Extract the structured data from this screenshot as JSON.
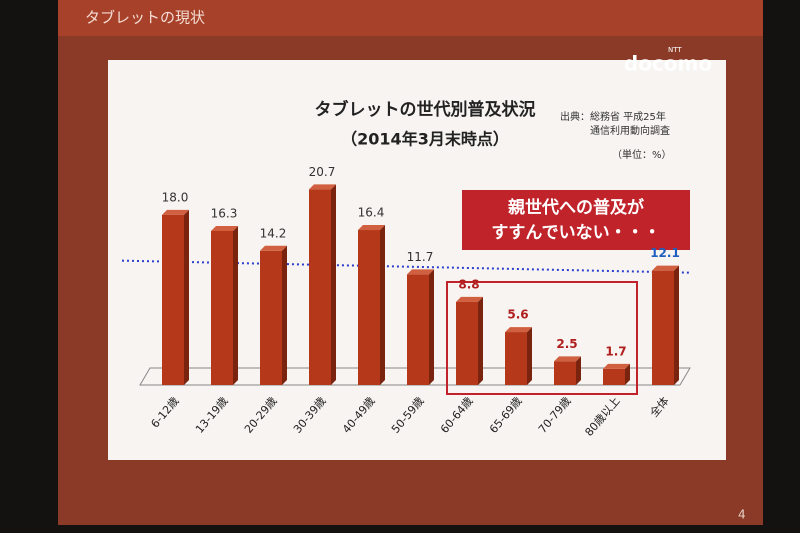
{
  "header": {
    "title": "タブレットの現状",
    "brand_small": "NTT",
    "brand": "docomo",
    "page": "4"
  },
  "chart_data": {
    "type": "bar",
    "title": "タブレットの世代別普及状況",
    "subtitle": "（2014年3月末時点）",
    "source": [
      "出典：総務省 平成25年",
      "通信利用動向調査"
    ],
    "unit": "（単位：%）",
    "categories": [
      "6-12歳",
      "13-19歳",
      "20-29歳",
      "30-39歳",
      "40-49歳",
      "50-59歳",
      "60-64歳",
      "65-69歳",
      "70-79歳",
      "80歳以上",
      "全体"
    ],
    "values": [
      18.0,
      16.3,
      14.2,
      20.7,
      16.4,
      11.7,
      8.8,
      5.6,
      2.5,
      1.7,
      12.1
    ],
    "value_labels": [
      "18.0",
      "16.3",
      "14.2",
      "20.7",
      "16.4",
      "11.7",
      "8.8",
      "5.6",
      "2.5",
      "1.7",
      "12.1"
    ],
    "color": "#b5381a",
    "value_label_colors": [
      "#333333",
      "#333333",
      "#333333",
      "#333333",
      "#333333",
      "#333333",
      "#b01e1e",
      "#b01e1e",
      "#b01e1e",
      "#b01e1e",
      "#1f5fc0"
    ],
    "reference_line_color": "#2a3fd0",
    "callout": [
      "親世代への普及が",
      "すすんでいない・・・"
    ]
  }
}
